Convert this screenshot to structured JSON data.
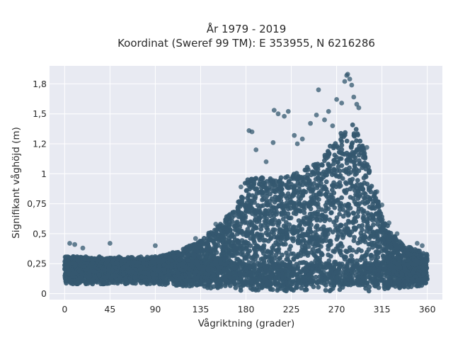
{
  "chart_data": {
    "type": "scatter",
    "title_line1": "År 1979 - 2019",
    "title_line2": "Koordinat (Sweref 99 TM): E 353955, N 6216286",
    "xlabel": "Vågriktning (grader)",
    "ylabel": "Signifikant våghöjd (m)",
    "xlim": [
      -15,
      375
    ],
    "ylim": [
      -0.05,
      1.9
    ],
    "x_ticks": [
      0,
      45,
      90,
      135,
      180,
      225,
      270,
      315,
      360
    ],
    "x_tick_labels": [
      "0",
      "45",
      "90",
      "135",
      "180",
      "225",
      "270",
      "315",
      "360"
    ],
    "y_ticks": [
      0,
      0.25,
      0.5,
      0.75,
      1.0,
      1.25,
      1.5,
      1.75
    ],
    "y_tick_labels": [
      "0",
      "0,25",
      "0,5",
      "0,75",
      "1",
      "1,2",
      "1,5",
      "1,8"
    ],
    "grid": true,
    "marker_color": "#34586f",
    "background_color": "#e8eaf2",
    "envelope_upper": [
      [
        0,
        0.32
      ],
      [
        20,
        0.3
      ],
      [
        45,
        0.3
      ],
      [
        70,
        0.28
      ],
      [
        90,
        0.3
      ],
      [
        110,
        0.35
      ],
      [
        130,
        0.42
      ],
      [
        150,
        0.55
      ],
      [
        165,
        0.68
      ],
      [
        175,
        0.82
      ],
      [
        180,
        0.95
      ],
      [
        195,
        0.97
      ],
      [
        210,
        0.96
      ],
      [
        225,
        0.99
      ],
      [
        240,
        1.05
      ],
      [
        255,
        1.12
      ],
      [
        265,
        1.25
      ],
      [
        275,
        1.35
      ],
      [
        285,
        1.42
      ],
      [
        292,
        1.35
      ],
      [
        300,
        1.12
      ],
      [
        310,
        0.8
      ],
      [
        318,
        0.6
      ],
      [
        330,
        0.45
      ],
      [
        345,
        0.38
      ],
      [
        360,
        0.33
      ]
    ],
    "envelope_lower": [
      [
        0,
        0.08
      ],
      [
        30,
        0.08
      ],
      [
        60,
        0.08
      ],
      [
        90,
        0.08
      ],
      [
        120,
        0.06
      ],
      [
        150,
        0.04
      ],
      [
        180,
        0.02
      ],
      [
        220,
        0.02
      ],
      [
        260,
        0.02
      ],
      [
        300,
        0.02
      ],
      [
        330,
        0.04
      ],
      [
        360,
        0.07
      ]
    ],
    "outliers": [
      [
        5,
        0.42
      ],
      [
        10,
        0.41
      ],
      [
        18,
        0.38
      ],
      [
        45,
        0.42
      ],
      [
        90,
        0.4
      ],
      [
        130,
        0.46
      ],
      [
        150,
        0.58
      ],
      [
        160,
        0.62
      ],
      [
        175,
        0.89
      ],
      [
        183,
        1.36
      ],
      [
        186,
        1.35
      ],
      [
        190,
        1.2
      ],
      [
        200,
        1.1
      ],
      [
        207,
        1.26
      ],
      [
        208,
        1.53
      ],
      [
        212,
        1.5
      ],
      [
        218,
        1.48
      ],
      [
        222,
        1.52
      ],
      [
        228,
        1.32
      ],
      [
        231,
        1.25
      ],
      [
        236,
        1.29
      ],
      [
        244,
        1.42
      ],
      [
        250,
        1.49
      ],
      [
        252,
        1.7
      ],
      [
        258,
        1.45
      ],
      [
        262,
        1.52
      ],
      [
        266,
        1.4
      ],
      [
        270,
        1.62
      ],
      [
        275,
        1.59
      ],
      [
        278,
        1.77
      ],
      [
        280,
        1.82
      ],
      [
        281,
        1.83
      ],
      [
        283,
        1.79
      ],
      [
        285,
        1.74
      ],
      [
        287,
        1.64
      ],
      [
        290,
        1.58
      ],
      [
        292,
        1.55
      ],
      [
        300,
        1.22
      ],
      [
        310,
        0.85
      ],
      [
        315,
        0.74
      ],
      [
        322,
        0.59
      ],
      [
        330,
        0.5
      ],
      [
        350,
        0.42
      ],
      [
        355,
        0.4
      ]
    ]
  }
}
